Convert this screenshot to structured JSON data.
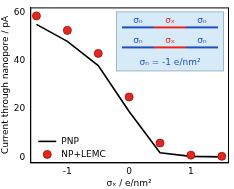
{
  "chart_data": {
    "type": "line",
    "x_label": "σₓ / e/nm²",
    "y_label": "Current through nanopore / pA",
    "x": [
      -1.5,
      -1,
      -0.5,
      0,
      0.5,
      1,
      1.5
    ],
    "series": [
      {
        "name": "PNP",
        "color": "#000000",
        "type": "line",
        "marker": "none",
        "line_style": "solid",
        "values": [
          55,
          48,
          38,
          19,
          2,
          0.5,
          0.3
        ]
      },
      {
        "name": "NP+LEMC",
        "color": "#e8261e",
        "type": "scatter",
        "marker": "circle",
        "values": [
          58.5,
          52.5,
          43,
          25,
          6,
          1,
          0.5
        ]
      }
    ],
    "xlim": [
      -1.6,
      1.6
    ],
    "xticks": [
      -1,
      0,
      1
    ],
    "ylim": [
      -2,
      62
    ],
    "yticks": [
      0,
      20,
      40,
      60
    ],
    "grid": false,
    "legend": "lower left",
    "annotations": {
      "inset_labels": [
        "σₙ",
        "σₓ",
        "σₙ"
      ],
      "inset_note": "σₙ = -1 e/nm²"
    }
  }
}
